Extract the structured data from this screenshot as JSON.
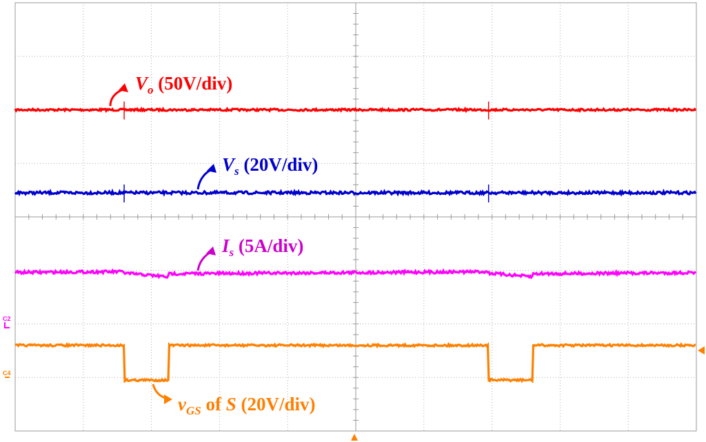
{
  "chart_data": {
    "type": "line",
    "title": "",
    "xlabel": "",
    "ylabel": "",
    "grid": true,
    "divisions": {
      "x": 10,
      "y": 8
    },
    "xlim": [
      0,
      10
    ],
    "ylim": [
      0,
      8
    ],
    "period_div": 5.35,
    "duty_off_div": [
      1.6,
      2.25
    ],
    "series": [
      {
        "key": "vo",
        "color": "#ff0000",
        "level_div": 6.0
      },
      {
        "key": "vs",
        "color": "#0000cc",
        "level_div": 4.45
      },
      {
        "key": "is",
        "color": "#ff00ff",
        "level_div": 2.95,
        "dip_div": 0.1
      },
      {
        "key": "vgs",
        "color": "#ff8000",
        "high_div": 1.6,
        "low_div": 0.95
      }
    ],
    "annotations": {
      "vo": {
        "sym": "V",
        "sub": "o",
        "rest": " (50V/div)",
        "color": "#ff0000"
      },
      "vs": {
        "sym": "V",
        "sub": "s",
        "rest": " (20V/div)",
        "color": "#0000cc"
      },
      "is": {
        "sym": "I",
        "sub": "s",
        "rest": " (5A/div)",
        "color": "#cc00cc"
      },
      "vgs": {
        "sym": "v",
        "sub": "GS",
        "mid": " of ",
        "sym2": "S",
        "rest": " (20V/div)",
        "color": "#ff7f00"
      }
    },
    "channel_markers": {
      "c2": {
        "text": "C2",
        "color": "#ff00ff"
      },
      "c4": {
        "text": "C4",
        "color": "#ff8000"
      }
    }
  }
}
